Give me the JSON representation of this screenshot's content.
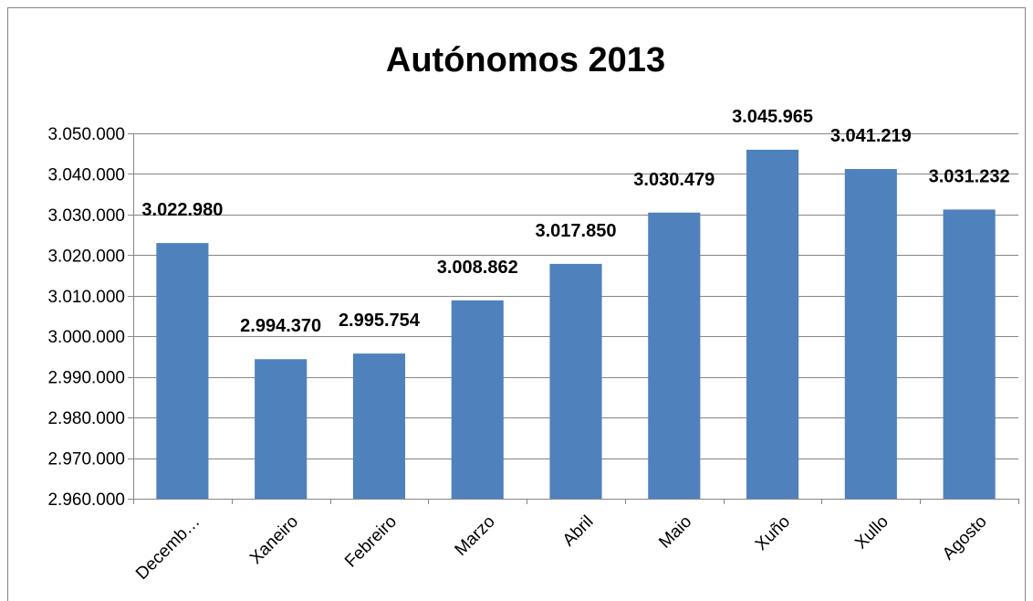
{
  "chart_data": {
    "type": "bar",
    "title": "Autónomos 2013",
    "categories": [
      "Decemb…",
      "Xaneiro",
      "Febreiro",
      "Marzo",
      "Abril",
      "Maio",
      "Xuño",
      "Xullo",
      "Agosto"
    ],
    "values": [
      3022980,
      2994370,
      2995754,
      3008862,
      3017850,
      3030479,
      3045965,
      3041219,
      3031232
    ],
    "data_labels": [
      "3.022.980",
      "2.994.370",
      "2.995.754",
      "3.008.862",
      "3.017.850",
      "3.030.479",
      "3.045.965",
      "3.041.219",
      "3.031.232"
    ],
    "ylim": [
      2960000,
      3050000
    ],
    "yticks": [
      2960000,
      2970000,
      2980000,
      2990000,
      3000000,
      3010000,
      3020000,
      3030000,
      3040000,
      3050000
    ],
    "ytick_labels": [
      "2.960.000",
      "2.970.000",
      "2.980.000",
      "2.990.000",
      "3.000.000",
      "3.010.000",
      "3.020.000",
      "3.030.000",
      "3.040.000",
      "3.050.000"
    ],
    "grid": true,
    "legend": "none",
    "bar_color": "#4F81BD"
  }
}
